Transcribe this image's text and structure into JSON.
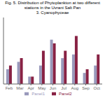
{
  "chart_data": {
    "type": "bar",
    "title": "Fig. 5. Distribution of Phytoplankton at two different stations in the Uvrani Salt Pan",
    "subtitle": "3. Cyanophyceae",
    "categories": [
      "Feb",
      "Mar",
      "Apr",
      "May",
      "Jun",
      "Jul",
      "Aug",
      "Sep",
      "Oct"
    ],
    "series": [
      {
        "name": "Panel1",
        "color": "#9999bb",
        "values": [
          4,
          6,
          2,
          5,
          12,
          7,
          8,
          3,
          5
        ]
      },
      {
        "name": "Panel2",
        "color": "#882244",
        "values": [
          5,
          7,
          2,
          9,
          11,
          9,
          13,
          4,
          8
        ]
      }
    ],
    "ylim": [
      0,
      18
    ],
    "grid": false,
    "legend": "bottom",
    "tick_labels": "x"
  }
}
